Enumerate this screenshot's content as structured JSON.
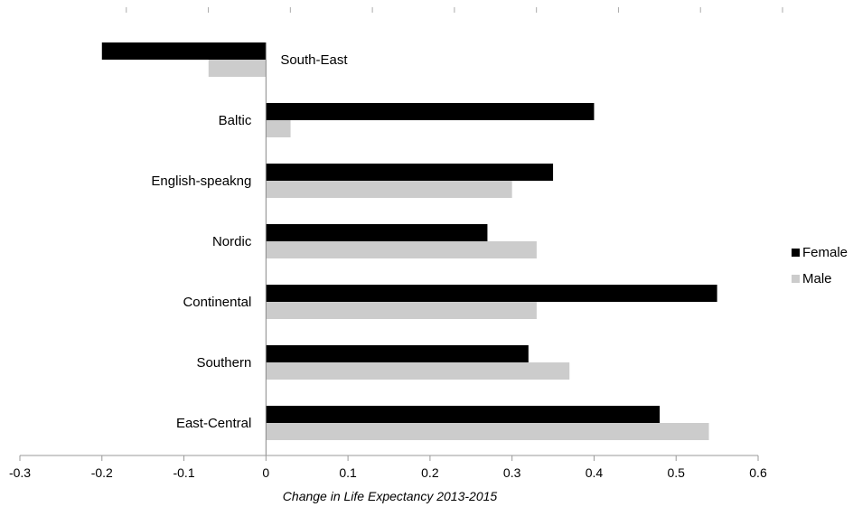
{
  "chart_data": {
    "type": "bar",
    "orientation": "horizontal",
    "categories": [
      "South-East",
      "Baltic",
      "English-speakng",
      "Nordic",
      "Continental",
      "Southern",
      "East-Central"
    ],
    "series": [
      {
        "name": "Female",
        "color": "#000000",
        "values": [
          -0.2,
          0.4,
          0.35,
          0.27,
          0.55,
          0.32,
          0.48
        ]
      },
      {
        "name": "Male",
        "color": "#cccccc",
        "values": [
          -0.07,
          0.03,
          0.3,
          0.33,
          0.33,
          0.37,
          0.54
        ]
      }
    ],
    "xlabel": "Change in Life Expectancy 2013-2015",
    "ylabel": "",
    "title": "",
    "xlim": [
      -0.3,
      0.6
    ],
    "xticks": [
      "-0.3",
      "-0.2",
      "-0.1",
      "0",
      "0.1",
      "0.2",
      "0.3",
      "0.4",
      "0.5",
      "0.6"
    ],
    "grid": false,
    "legend_position": "right"
  }
}
